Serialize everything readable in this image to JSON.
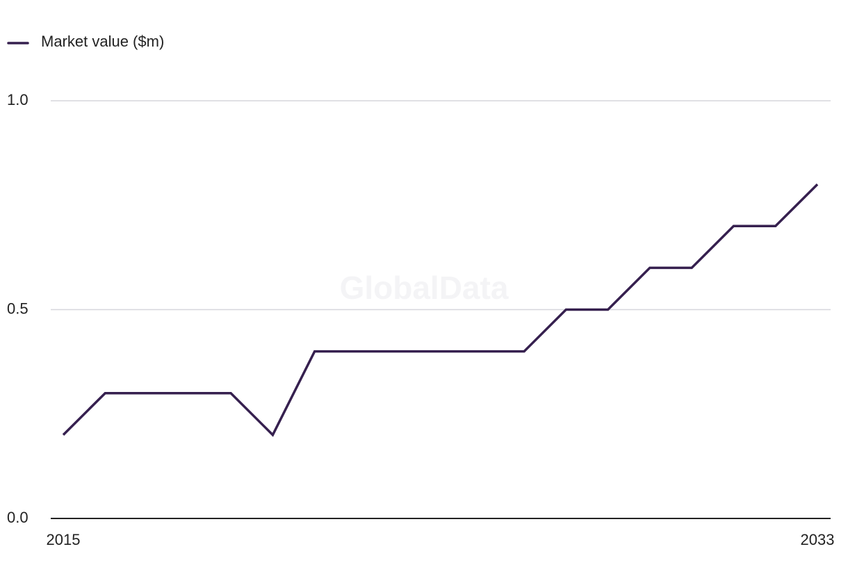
{
  "chart_data": {
    "type": "line",
    "watermark": "GlobalData",
    "x": [
      2015,
      2016,
      2017,
      2018,
      2019,
      2020,
      2021,
      2022,
      2023,
      2024,
      2025,
      2026,
      2027,
      2028,
      2029,
      2030,
      2031,
      2032,
      2033
    ],
    "series": [
      {
        "name": "Market value ($m)",
        "color": "#36204f",
        "values": [
          0.2,
          0.3,
          0.3,
          0.3,
          0.3,
          0.2,
          0.4,
          0.4,
          0.4,
          0.4,
          0.4,
          0.4,
          0.5,
          0.5,
          0.6,
          0.6,
          0.7,
          0.7,
          0.8
        ]
      }
    ],
    "xlim": [
      2015,
      2033
    ],
    "xticks": [
      2015,
      2033
    ],
    "ylim": [
      0,
      1
    ],
    "yticks": [
      {
        "value": 0,
        "label": "0.0"
      },
      0.5,
      {
        "value": 1,
        "label": "1.0"
      }
    ],
    "grid": true,
    "legend": "top-left"
  }
}
